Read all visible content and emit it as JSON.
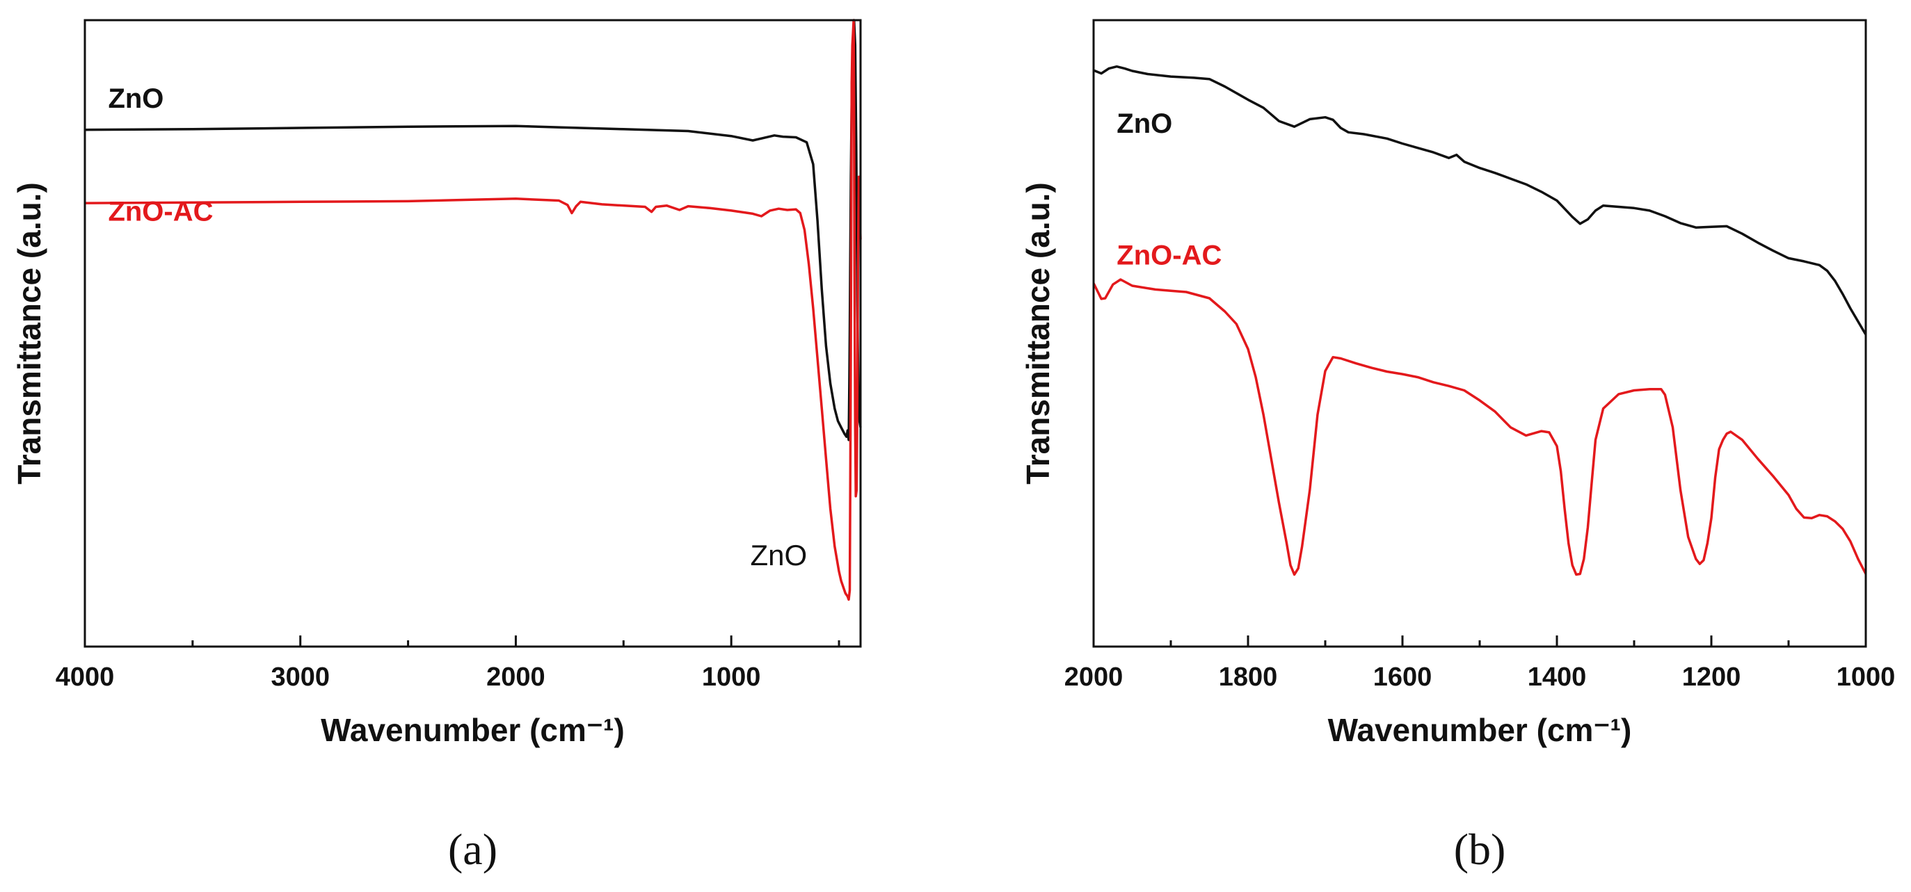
{
  "colors": {
    "zno": "#111111",
    "zno_ac": "#e3191c"
  },
  "chart_data": [
    {
      "id": "a",
      "type": "line",
      "panel_label": "(a)",
      "title": "",
      "xlabel": "Wavenumber (cm⁻¹)",
      "ylabel": "Transmittance (a.u.)",
      "xlim": [
        4000,
        400
      ],
      "ylim": [
        0,
        100
      ],
      "xticks": [
        4000,
        3000,
        2000,
        1000
      ],
      "xtick_labels": [
        "4000",
        "3000",
        "2000",
        "1000"
      ],
      "annotations": [
        {
          "text": "ZnO",
          "x": 780,
          "y": 13
        }
      ],
      "series": [
        {
          "name": "ZnO",
          "color": "#111111",
          "x": [
            4000,
            3500,
            3000,
            2500,
            2000,
            1800,
            1500,
            1200,
            1000,
            900,
            850,
            800,
            760,
            700,
            650,
            620,
            600,
            580,
            560,
            540,
            520,
            505,
            490,
            475,
            465,
            460,
            455,
            452,
            450,
            448,
            445,
            440,
            435,
            430,
            425,
            420,
            415,
            410,
            405,
            400
          ],
          "y": [
            82.5,
            82.6,
            82.8,
            83.0,
            83.1,
            82.9,
            82.6,
            82.3,
            81.5,
            80.8,
            81.2,
            81.6,
            81.4,
            81.3,
            80.5,
            77.0,
            68.0,
            57.0,
            48.0,
            42.0,
            38.0,
            36.0,
            35.0,
            34.0,
            33.5,
            34.5,
            33.0,
            42.0,
            50.0,
            60.0,
            75.0,
            90.0,
            95.0,
            100.0,
            96.0,
            80.0,
            55.0,
            40.0,
            36.0,
            35.0
          ]
        },
        {
          "name": "ZnO-AC",
          "color": "#e3191c",
          "x": [
            4000,
            3500,
            3000,
            2500,
            2000,
            1800,
            1760,
            1740,
            1720,
            1700,
            1600,
            1400,
            1370,
            1350,
            1300,
            1240,
            1220,
            1200,
            1100,
            1000,
            900,
            860,
            820,
            780,
            740,
            700,
            680,
            660,
            640,
            620,
            600,
            580,
            560,
            540,
            520,
            500,
            490,
            480,
            470,
            460,
            455,
            450,
            447,
            444,
            441,
            438,
            435,
            432,
            430,
            428,
            425,
            422,
            418,
            415,
            412,
            408,
            404,
            400
          ],
          "y": [
            70.8,
            70.9,
            71.0,
            71.1,
            71.5,
            71.2,
            70.5,
            69.2,
            70.3,
            71.0,
            70.6,
            70.2,
            69.4,
            70.2,
            70.4,
            69.7,
            70.0,
            70.3,
            70.0,
            69.6,
            69.1,
            68.7,
            69.6,
            69.9,
            69.7,
            69.8,
            69.2,
            66.5,
            61.0,
            54.0,
            46.0,
            38.0,
            30.0,
            22.0,
            16.0,
            12.0,
            10.5,
            9.5,
            8.5,
            8.0,
            7.5,
            9.0,
            30.0,
            60.0,
            90.0,
            96.0,
            98.0,
            100.0,
            85.0,
            60.0,
            35.0,
            24.0,
            25.0,
            40.0,
            60.0,
            75.0,
            70.0,
            65.0
          ]
        }
      ]
    },
    {
      "id": "b",
      "type": "line",
      "panel_label": "(b)",
      "title": "",
      "xlabel": "Wavenumber (cm⁻¹)",
      "ylabel": "Transmittance (a.u.)",
      "xlim": [
        2000,
        1000
      ],
      "ylim": [
        0,
        100
      ],
      "xticks": [
        2000,
        1800,
        1600,
        1400,
        1200,
        1000
      ],
      "xtick_labels": [
        "2000",
        "1800",
        "1600",
        "1400",
        "1200",
        "1000"
      ],
      "annotations": [],
      "series": [
        {
          "name": "ZnO",
          "color": "#111111",
          "x": [
            2000,
            1990,
            1980,
            1970,
            1960,
            1950,
            1930,
            1900,
            1870,
            1850,
            1830,
            1800,
            1780,
            1760,
            1740,
            1720,
            1700,
            1690,
            1680,
            1670,
            1650,
            1620,
            1600,
            1580,
            1560,
            1540,
            1530,
            1520,
            1500,
            1480,
            1460,
            1440,
            1420,
            1400,
            1390,
            1380,
            1370,
            1360,
            1350,
            1340,
            1320,
            1300,
            1280,
            1260,
            1240,
            1220,
            1200,
            1180,
            1160,
            1140,
            1120,
            1100,
            1080,
            1060,
            1050,
            1040,
            1030,
            1020,
            1010,
            1000
          ],
          "y": [
            92.0,
            91.5,
            92.3,
            92.6,
            92.3,
            91.9,
            91.4,
            91.0,
            90.8,
            90.6,
            89.4,
            87.3,
            86.0,
            83.9,
            83.0,
            84.2,
            84.5,
            84.1,
            82.8,
            82.1,
            81.8,
            81.1,
            80.3,
            79.6,
            78.9,
            78.0,
            78.5,
            77.4,
            76.4,
            75.6,
            74.7,
            73.8,
            72.6,
            71.2,
            69.9,
            68.6,
            67.5,
            68.2,
            69.6,
            70.4,
            70.2,
            70.0,
            69.6,
            68.7,
            67.6,
            66.9,
            67.0,
            67.1,
            65.9,
            64.5,
            63.2,
            62.0,
            61.5,
            60.9,
            60.0,
            58.4,
            56.3,
            54.0,
            51.9,
            49.8
          ]
        },
        {
          "name": "ZnO-AC",
          "color": "#e3191c",
          "x": [
            2000,
            1990,
            1985,
            1975,
            1965,
            1950,
            1920,
            1900,
            1880,
            1850,
            1830,
            1815,
            1800,
            1790,
            1780,
            1770,
            1760,
            1750,
            1745,
            1740,
            1735,
            1730,
            1720,
            1710,
            1700,
            1690,
            1680,
            1660,
            1640,
            1620,
            1600,
            1580,
            1560,
            1540,
            1520,
            1500,
            1480,
            1460,
            1440,
            1420,
            1410,
            1400,
            1395,
            1390,
            1385,
            1380,
            1375,
            1370,
            1365,
            1360,
            1355,
            1350,
            1340,
            1320,
            1300,
            1280,
            1265,
            1260,
            1250,
            1240,
            1230,
            1220,
            1215,
            1210,
            1205,
            1200,
            1195,
            1190,
            1185,
            1180,
            1175,
            1160,
            1140,
            1120,
            1100,
            1090,
            1080,
            1070,
            1060,
            1050,
            1040,
            1030,
            1020,
            1010,
            1000
          ],
          "y": [
            58.0,
            55.5,
            55.6,
            57.8,
            58.6,
            57.6,
            57.0,
            56.8,
            56.6,
            55.6,
            53.5,
            51.5,
            47.5,
            43.0,
            37.0,
            30.0,
            23.0,
            16.5,
            13.0,
            11.5,
            12.5,
            16.0,
            25.0,
            37.0,
            44.0,
            46.2,
            46.0,
            45.2,
            44.5,
            43.9,
            43.5,
            43.0,
            42.2,
            41.6,
            40.9,
            39.3,
            37.5,
            35.0,
            33.7,
            34.4,
            34.2,
            32.0,
            28.0,
            22.0,
            16.5,
            13.0,
            11.5,
            11.6,
            14.0,
            19.0,
            26.0,
            33.0,
            38.0,
            40.3,
            40.9,
            41.1,
            41.1,
            40.2,
            35.0,
            25.0,
            17.5,
            14.0,
            13.2,
            13.8,
            16.5,
            20.5,
            27.0,
            31.5,
            33.0,
            34.0,
            34.3,
            33.0,
            30.0,
            27.2,
            24.2,
            22.0,
            20.6,
            20.5,
            21.0,
            20.8,
            20.0,
            18.8,
            16.8,
            14.0,
            11.6
          ]
        }
      ]
    }
  ]
}
